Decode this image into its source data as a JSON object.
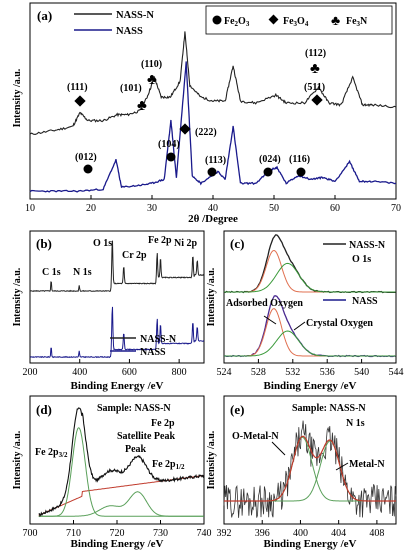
{
  "chart_data": [
    {
      "panel": "(a)",
      "type": "line",
      "xlabel": "2θ /Degree",
      "ylabel": "Intensity /a.u.",
      "xlim": [
        10,
        70
      ],
      "xticks": [
        "10",
        "20",
        "30",
        "40",
        "50",
        "60",
        "70"
      ],
      "series": [
        {
          "name": "NASS-N",
          "color": "#222222",
          "x": [
            10,
            14,
            17,
            18.2,
            19.5,
            22,
            24.3,
            26,
            28,
            29.2,
            30.4,
            31.5,
            33,
            34.6,
            35.4,
            36.2,
            38,
            40,
            42,
            43.3,
            44.5,
            47,
            50.3,
            52,
            55,
            57.3,
            59,
            61,
            62.9,
            64.5,
            66,
            70
          ],
          "y": [
            0.33,
            0.35,
            0.37,
            0.44,
            0.4,
            0.4,
            0.43,
            0.43,
            0.45,
            0.52,
            0.62,
            0.52,
            0.52,
            0.6,
            0.85,
            0.58,
            0.52,
            0.5,
            0.5,
            0.68,
            0.5,
            0.49,
            0.53,
            0.49,
            0.49,
            0.57,
            0.49,
            0.48,
            0.62,
            0.48,
            0.48,
            0.47
          ]
        },
        {
          "name": "NASS",
          "color": "#1a1a8c",
          "x": [
            10,
            14,
            18,
            22,
            24.1,
            25,
            28,
            30,
            32,
            33.1,
            34,
            35.6,
            36.6,
            38,
            40.8,
            42,
            43.3,
            44.5,
            47,
            49.5,
            50.5,
            52,
            54,
            56,
            58,
            60,
            62.4,
            64,
            66,
            70
          ],
          "y": [
            0.04,
            0.04,
            0.04,
            0.05,
            0.2,
            0.06,
            0.07,
            0.08,
            0.1,
            0.4,
            0.11,
            0.7,
            0.12,
            0.08,
            0.14,
            0.1,
            0.37,
            0.08,
            0.08,
            0.15,
            0.16,
            0.08,
            0.12,
            0.1,
            0.11,
            0.09,
            0.19,
            0.09,
            0.09,
            0.08
          ]
        }
      ],
      "annotations": [
        {
          "text": "(111)",
          "x": 18.2
        },
        {
          "text": "(101)",
          "x": 29.2
        },
        {
          "text": "(110)",
          "x": 30.4
        },
        {
          "text": "(112)",
          "x": 57.3
        },
        {
          "text": "(511)",
          "x": 57.3
        },
        {
          "text": "(012)",
          "x": 24.1
        },
        {
          "text": "(104)",
          "x": 33.1
        },
        {
          "text": "(222)",
          "x": 35.6
        },
        {
          "text": "(113)",
          "x": 40.8
        },
        {
          "text": "(024)",
          "x": 49.5
        },
        {
          "text": "(116)",
          "x": 54.5
        }
      ],
      "legend_markers": [
        "Fe₂O₃",
        "Fe₃O₄",
        "Fe₃N"
      ]
    },
    {
      "panel": "(b)",
      "type": "line",
      "xlabel": "Binding Energy /eV",
      "ylabel": "Intensity /a.u.",
      "xlim": [
        200,
        900
      ],
      "xticks": [
        "200",
        "400",
        "600",
        "800"
      ],
      "labels": [
        "C 1s",
        "N 1s",
        "O 1s",
        "Cr 2p",
        "Fe 2p",
        "Ni 2p"
      ],
      "series": [
        {
          "name": "NASS-N"
        },
        {
          "name": "NASS"
        }
      ]
    },
    {
      "panel": "(c)",
      "type": "line",
      "xlabel": "Binding Energy /eV",
      "ylabel": "Intensity /a.u.",
      "xlim": [
        524,
        544
      ],
      "xticks": [
        "524",
        "528",
        "532",
        "536",
        "540",
        "544"
      ],
      "labels": [
        "NASS-N",
        "O 1s",
        "NASS",
        "Adsorbed Oxygen",
        "Crystal Oxygen"
      ]
    },
    {
      "panel": "(d)",
      "type": "line",
      "xlabel": "Binding Energy /eV",
      "ylabel": "Intensity /a.u.",
      "xlim": [
        700,
        740
      ],
      "xticks": [
        "700",
        "710",
        "720",
        "730",
        "740"
      ],
      "labels": [
        "Sample: NASS-N",
        "Fe 2p",
        "Satellite Peak"
      ]
    },
    {
      "panel": "(e)",
      "type": "line",
      "xlabel": "Binding Energy /eV",
      "ylabel": "Intensity /a.u.",
      "xlim": [
        392,
        410
      ],
      "xticks": [
        "392",
        "396",
        "400",
        "404",
        "408"
      ],
      "labels": [
        "Sample: NASS-N",
        "N 1s",
        "O-Metal-N",
        "Metal-N"
      ]
    }
  ],
  "texts": {
    "a_panel": "(a)",
    "a_legend1": "NASS-N",
    "a_legend2": "NASS",
    "a_fe2o3": "Fe",
    "a_fe3o4": "Fe",
    "a_fe3n": "Fe",
    "b_panel": "(b)",
    "c_panel": "(c)",
    "d_panel": "(d)",
    "e_panel": "(e)",
    "d_fe2p32": "Fe 2p",
    "d_fe2p12": "Fe 2p",
    "sub32": "3/2",
    "sub12": "1/2",
    "d_peak": "Peak",
    "c_oxygen": "Oxygen"
  }
}
